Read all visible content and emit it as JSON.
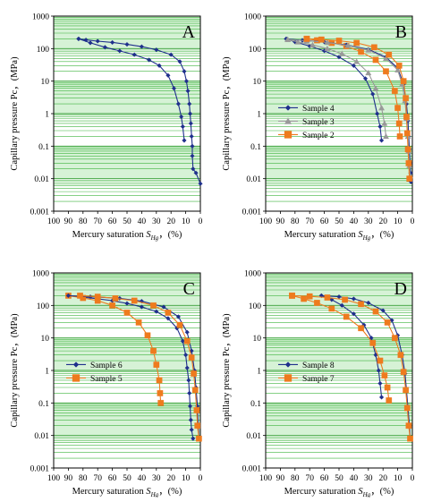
{
  "figure": {
    "y_tick_labels": [
      "1000",
      "100",
      "10",
      "1",
      "0.1",
      "0.01",
      "0.001"
    ],
    "x_tick_labels": [
      "100",
      "90",
      "80",
      "70",
      "60",
      "50",
      "40",
      "30",
      "20",
      "10",
      "0"
    ]
  },
  "chart_data": [
    {
      "type": "line",
      "panel_label": "A",
      "xlabel_prefix": "Mercury saturation ",
      "xlabel_symbol": "S",
      "xlabel_subscript": "Hg",
      "xlabel_suffix": "，(%)",
      "ylabel": "Capillary pressure Pc，(MPa)",
      "xlim": [
        100,
        0
      ],
      "ylim": [
        0.001,
        1000
      ],
      "y_scale": "log",
      "grid": true,
      "legend": null,
      "series": [
        {
          "color": "#1f2f8c",
          "marker": "diamond",
          "x": [
            83,
            75,
            65,
            55,
            45,
            35,
            28,
            22,
            18,
            15,
            13,
            12,
            11
          ],
          "y": [
            200,
            150,
            110,
            85,
            65,
            45,
            30,
            15,
            6,
            2,
            0.8,
            0.4,
            0.15
          ]
        },
        {
          "color": "#1f2f8c",
          "marker": "diamond",
          "x": [
            83,
            78,
            70,
            60,
            50,
            40,
            30,
            20,
            14,
            11,
            9.5,
            8.5,
            7.5,
            7,
            6.5,
            6,
            5.5,
            5.5,
            5,
            3,
            0
          ],
          "y": [
            200,
            185,
            170,
            155,
            135,
            115,
            92,
            65,
            40,
            20,
            10,
            5,
            2,
            1,
            0.5,
            0.2,
            0.1,
            0.05,
            0.02,
            0.015,
            0.007
          ]
        }
      ]
    },
    {
      "type": "line",
      "panel_label": "B",
      "xlabel_prefix": "Mercury saturation ",
      "xlabel_symbol": "S",
      "xlabel_subscript": "Hg",
      "xlabel_suffix": "，(%)",
      "ylabel": "Capillary pressure Pc，(MPa)",
      "xlim": [
        100,
        0
      ],
      "ylim": [
        0.001,
        1000
      ],
      "y_scale": "log",
      "grid": true,
      "legend": "middle-left",
      "series": [
        {
          "name": "Sample 4",
          "color": "#1f2f8c",
          "marker": "diamond",
          "x": [
            86,
            80,
            70,
            60,
            50,
            40,
            32,
            27,
            24,
            22,
            21
          ],
          "y": [
            200,
            160,
            120,
            85,
            55,
            30,
            12,
            4,
            1,
            0.4,
            0.15
          ]
        },
        {
          "name": "Sample 3",
          "color": "#999999",
          "marker": "triangle",
          "x": [
            85,
            78,
            68,
            58,
            48,
            38,
            30,
            25,
            21,
            19,
            18
          ],
          "y": [
            190,
            160,
            130,
            100,
            70,
            40,
            18,
            6,
            1.5,
            0.5,
            0.2
          ]
        },
        {
          "name": "Sample 2",
          "color": "#ee7b1e",
          "marker": "square",
          "x": [
            72,
            65,
            55,
            45,
            35,
            25,
            18,
            12,
            10,
            9,
            8.5
          ],
          "y": [
            200,
            180,
            150,
            120,
            80,
            45,
            20,
            5,
            1.5,
            0.5,
            0.2
          ]
        },
        {
          "color": "#1f2f8c",
          "marker": "diamond",
          "x": [
            86,
            75,
            60,
            45,
            30,
            18,
            10,
            6,
            4,
            3,
            2.5,
            2,
            1.5,
            1.2,
            1
          ],
          "y": [
            200,
            180,
            160,
            130,
            95,
            55,
            25,
            8,
            2,
            0.6,
            0.2,
            0.08,
            0.03,
            0.015,
            0.008
          ]
        },
        {
          "color": "#999999",
          "marker": "triangle",
          "x": [
            85,
            72,
            58,
            44,
            30,
            18,
            10,
            7,
            5,
            4,
            3,
            2.5,
            2,
            1.5
          ],
          "y": [
            190,
            175,
            155,
            125,
            90,
            50,
            22,
            8,
            2.5,
            0.7,
            0.2,
            0.07,
            0.025,
            0.012
          ]
        },
        {
          "color": "#ee7b1e",
          "marker": "square",
          "x": [
            72,
            62,
            50,
            38,
            26,
            16,
            9,
            6,
            4.5,
            4,
            3.5,
            3,
            2.5,
            2
          ],
          "y": [
            200,
            190,
            175,
            150,
            110,
            65,
            30,
            10,
            3,
            0.8,
            0.25,
            0.08,
            0.03,
            0.01
          ]
        }
      ]
    },
    {
      "type": "line",
      "panel_label": "C",
      "xlabel_prefix": "Mercury saturation ",
      "xlabel_symbol": "S",
      "xlabel_subscript": "Hg",
      "xlabel_suffix": "，(%)",
      "ylabel": "Capillary pressure Pc，(MPa)",
      "xlim": [
        100,
        0
      ],
      "ylim": [
        0.001,
        1000
      ],
      "y_scale": "log",
      "grid": true,
      "legend": "middle-left",
      "series": [
        {
          "name": "Sample 6",
          "color": "#1f2f8c",
          "marker": "diamond",
          "x": [
            90,
            80,
            70,
            60,
            50,
            40,
            30,
            22,
            16,
            12,
            10,
            9,
            8,
            7.5,
            7,
            6.5,
            6,
            5
          ],
          "y": [
            200,
            180,
            160,
            140,
            115,
            90,
            65,
            40,
            20,
            8,
            3,
            1.2,
            0.5,
            0.2,
            0.08,
            0.03,
            0.015,
            0.008
          ]
        },
        {
          "name": "Sample 5",
          "color": "#ee7b1e",
          "marker": "square",
          "x": [
            90,
            80,
            70,
            60,
            50,
            42,
            36,
            32,
            30,
            28,
            27.5,
            27
          ],
          "y": [
            200,
            170,
            140,
            100,
            60,
            30,
            12,
            4,
            1.5,
            0.5,
            0.2,
            0.1
          ]
        },
        {
          "color": "#1f2f8c",
          "marker": "diamond",
          "x": [
            90,
            75,
            55,
            40,
            25,
            15,
            9,
            6,
            4,
            3,
            2,
            1.5,
            1
          ],
          "y": [
            200,
            185,
            165,
            135,
            90,
            45,
            15,
            4,
            1,
            0.3,
            0.08,
            0.02,
            0.008
          ]
        },
        {
          "color": "#ee7b1e",
          "marker": "square",
          "x": [
            82,
            70,
            58,
            45,
            32,
            22,
            14,
            9,
            6,
            4.5,
            3.5,
            2.5,
            2,
            1
          ],
          "y": [
            200,
            185,
            165,
            140,
            100,
            60,
            25,
            8,
            2.5,
            0.8,
            0.25,
            0.06,
            0.02,
            0.008
          ]
        }
      ]
    },
    {
      "type": "line",
      "panel_label": "D",
      "xlabel_prefix": "Mercury saturation ",
      "xlabel_symbol": "S",
      "xlabel_subscript": "Hg",
      "xlabel_suffix": "，(%)",
      "ylabel": "Capillary pressure Pc，(MPa)",
      "xlim": [
        100,
        0
      ],
      "ylim": [
        0.001,
        1000
      ],
      "y_scale": "log",
      "grid": true,
      "legend": "middle-left",
      "series": [
        {
          "name": "Sample 8",
          "color": "#1f2f8c",
          "marker": "diamond",
          "x": [
            62,
            55,
            48,
            40,
            33,
            28,
            25,
            23,
            22,
            21
          ],
          "y": [
            200,
            150,
            100,
            55,
            25,
            10,
            3,
            1,
            0.4,
            0.15
          ]
        },
        {
          "name": "Sample 7",
          "color": "#ee7b1e",
          "marker": "square",
          "x": [
            82,
            74,
            65,
            55,
            45,
            35,
            27,
            22,
            19,
            17,
            16
          ],
          "y": [
            200,
            160,
            120,
            80,
            45,
            20,
            7,
            2,
            0.7,
            0.3,
            0.12
          ]
        },
        {
          "color": "#1f2f8c",
          "marker": "diamond",
          "x": [
            62,
            50,
            40,
            30,
            20,
            14,
            10,
            7,
            5,
            4,
            3,
            2,
            1.5
          ],
          "y": [
            200,
            185,
            160,
            120,
            70,
            35,
            12,
            3,
            0.8,
            0.25,
            0.07,
            0.02,
            0.008
          ]
        },
        {
          "color": "#ee7b1e",
          "marker": "square",
          "x": [
            82,
            70,
            58,
            46,
            35,
            25,
            17,
            12,
            8,
            6,
            4.5,
            3.5,
            2.5,
            1.5
          ],
          "y": [
            200,
            190,
            175,
            150,
            110,
            65,
            30,
            10,
            3,
            0.9,
            0.25,
            0.07,
            0.02,
            0.008
          ]
        }
      ]
    }
  ]
}
